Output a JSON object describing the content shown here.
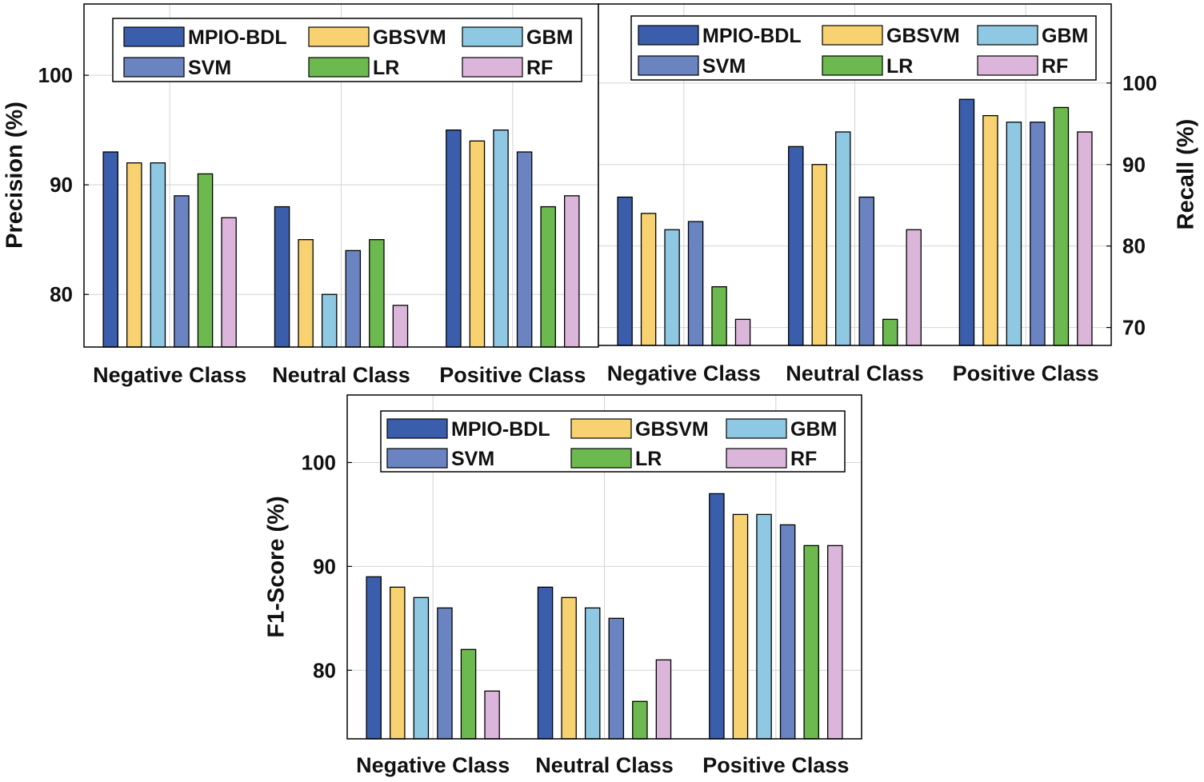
{
  "chart_data": [
    {
      "type": "bar",
      "ylabel": "Precision (%)",
      "ylabel_side": "left",
      "categories": [
        "Negative Class",
        "Neutral Class",
        "Positive Class"
      ],
      "yticks": [
        80,
        90,
        100
      ],
      "ylim": [
        75.2,
        106.5
      ],
      "grid": true,
      "legend_position": "top",
      "series": [
        {
          "name": "MPIO-BDL",
          "values": [
            93,
            88,
            95
          ]
        },
        {
          "name": "GBSVM",
          "values": [
            92,
            85,
            94
          ]
        },
        {
          "name": "GBM",
          "values": [
            92,
            80,
            95
          ]
        },
        {
          "name": "SVM",
          "values": [
            89,
            84,
            93
          ]
        },
        {
          "name": "LR",
          "values": [
            91,
            85,
            88
          ]
        },
        {
          "name": "RF",
          "values": [
            87,
            79,
            89
          ]
        }
      ]
    },
    {
      "type": "bar",
      "ylabel": "Recall (%)",
      "ylabel_side": "right",
      "categories": [
        "Negative Class",
        "Neutral Class",
        "Positive Class"
      ],
      "yticks": [
        70,
        80,
        90,
        100
      ],
      "ylim": [
        67.8,
        109.7
      ],
      "grid": true,
      "legend_position": "top",
      "series": [
        {
          "name": "MPIO-BDL",
          "values": [
            86,
            92.2,
            98
          ]
        },
        {
          "name": "GBSVM",
          "values": [
            84,
            90,
            96
          ]
        },
        {
          "name": "GBM",
          "values": [
            82,
            94,
            95.2
          ]
        },
        {
          "name": "SVM",
          "values": [
            83,
            86,
            95.2
          ]
        },
        {
          "name": "LR",
          "values": [
            75,
            71,
            97
          ]
        },
        {
          "name": "RF",
          "values": [
            71,
            82,
            94
          ]
        }
      ]
    },
    {
      "type": "bar",
      "ylabel": "F1-Score (%)",
      "ylabel_side": "left",
      "categories": [
        "Negative Class",
        "Neutral Class",
        "Positive Class"
      ],
      "yticks": [
        80,
        90,
        100
      ],
      "ylim": [
        73.4,
        106.5
      ],
      "grid": true,
      "legend_position": "top",
      "series": [
        {
          "name": "MPIO-BDL",
          "values": [
            89,
            88,
            97
          ]
        },
        {
          "name": "GBSVM",
          "values": [
            88,
            87,
            95
          ]
        },
        {
          "name": "GBM",
          "values": [
            87,
            86,
            95
          ]
        },
        {
          "name": "SVM",
          "values": [
            86,
            85,
            94
          ]
        },
        {
          "name": "LR",
          "values": [
            82,
            77,
            92
          ]
        },
        {
          "name": "RF",
          "values": [
            78,
            81,
            92
          ]
        }
      ]
    }
  ],
  "colors": {
    "MPIO-BDL": "#3a5eab",
    "GBSVM": "#f8d271",
    "GBM": "#8ec8e2",
    "SVM": "#6a84c2",
    "LR": "#6cba4f",
    "RF": "#dcb6da"
  }
}
